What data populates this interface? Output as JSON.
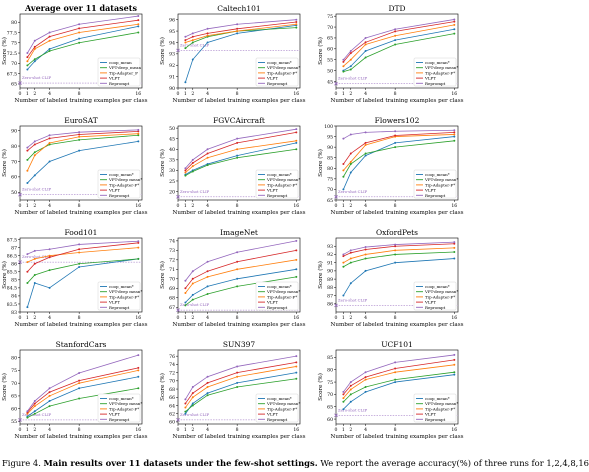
{
  "series_meta": [
    {
      "name": "coop_mean",
      "color": "#1f77b4"
    },
    {
      "name": "VPT-deep_mean",
      "color": "#2ca02c"
    },
    {
      "name": "Tip-Adapter_F",
      "color": "#ff7f0e"
    },
    {
      "name": "VLPT",
      "color": "#d62728"
    },
    {
      "name": "Reprompt",
      "color": "#9467bd"
    }
  ],
  "zeroshot_label": "Zero-shot CLIP",
  "zeroshot_color": "#9467bd",
  "xlabel": "Number of labeled training examples per class",
  "ylabel": "Score (%)",
  "caption": {
    "prefix": "Figure 4.",
    "bold": "Main results over 11 datasets under the few-shot settings.",
    "rest": "We report the average accuracy(%) of three runs for 1,2,4,8,16"
  },
  "chart_data": [
    {
      "type": "line",
      "title": "Average over 11 datasets",
      "x": [
        1,
        2,
        4,
        8,
        16
      ],
      "xticks": [
        0,
        1,
        2,
        4,
        8,
        16
      ],
      "ylim": [
        64,
        82
      ],
      "yticks": [
        65.0,
        67.5,
        70.0,
        72.5,
        75.0,
        77.5,
        80.0
      ],
      "zeroshot": 65.2,
      "legend_names": [
        "coop_mean",
        "VPT-deep_mean",
        "Tip-Adapter_F",
        "VLPT",
        "Reprompt"
      ],
      "series": [
        {
          "name": "coop_mean",
          "values": [
            68.5,
            70.5,
            73.5,
            76.0,
            79.0
          ]
        },
        {
          "name": "VPT-deep_mean",
          "values": [
            69.5,
            71.0,
            73.0,
            75.0,
            77.5
          ]
        },
        {
          "name": "Tip-Adapter_F",
          "values": [
            70.5,
            73.5,
            75.5,
            77.5,
            79.5
          ]
        },
        {
          "name": "VLPT",
          "values": [
            71.5,
            74.0,
            76.5,
            78.5,
            80.5
          ]
        },
        {
          "name": "Reprompt",
          "values": [
            72.5,
            75.5,
            77.5,
            79.5,
            81.5
          ]
        }
      ]
    },
    {
      "type": "line",
      "title": "Caltech101",
      "x": [
        1,
        2,
        4,
        8,
        16
      ],
      "xticks": [
        0,
        1,
        2,
        4,
        8,
        16
      ],
      "ylim": [
        90,
        96.5
      ],
      "yticks": [
        90,
        91,
        92,
        93,
        94,
        95,
        96
      ],
      "zeroshot": 93.3,
      "legend_names": [
        "coop_mean*",
        "VPT-deep mean*",
        "Tip-Adapter-F*",
        "VLPT",
        "Reprompt"
      ],
      "series": [
        {
          "name": "coop_mean*",
          "values": [
            90.5,
            92.5,
            94.0,
            94.8,
            95.5
          ]
        },
        {
          "name": "VPT-deep mean*",
          "values": [
            93.5,
            94.0,
            94.5,
            95.0,
            95.3
          ]
        },
        {
          "name": "Tip-Adapter-F*",
          "values": [
            94.0,
            94.2,
            94.6,
            95.0,
            95.6
          ]
        },
        {
          "name": "VLPT",
          "values": [
            94.2,
            94.5,
            94.8,
            95.2,
            95.8
          ]
        },
        {
          "name": "Reprompt",
          "values": [
            94.5,
            94.8,
            95.2,
            95.6,
            96.0
          ]
        }
      ]
    },
    {
      "type": "line",
      "title": "DTD",
      "x": [
        1,
        2,
        4,
        8,
        16
      ],
      "xticks": [
        0,
        1,
        2,
        4,
        8,
        16
      ],
      "ylim": [
        42,
        76
      ],
      "yticks": [
        45,
        50,
        55,
        60,
        65,
        70,
        75
      ],
      "zeroshot": 44.0,
      "legend_names": [
        "coop_mean*",
        "VPT-deep mean*",
        "Tip-Adapter-F*",
        "VLPT",
        "Reprompt"
      ],
      "series": [
        {
          "name": "coop_mean*",
          "values": [
            50.0,
            52.0,
            59.0,
            64.0,
            69.0
          ]
        },
        {
          "name": "VPT-deep mean*",
          "values": [
            49.5,
            50.5,
            56.0,
            62.0,
            67.0
          ]
        },
        {
          "name": "Tip-Adapter-F*",
          "values": [
            52.0,
            55.0,
            62.0,
            66.0,
            71.0
          ]
        },
        {
          "name": "VLPT",
          "values": [
            54.0,
            58.0,
            63.0,
            68.0,
            72.5
          ]
        },
        {
          "name": "Reprompt",
          "values": [
            55.0,
            59.0,
            65.0,
            69.0,
            73.5
          ]
        }
      ]
    },
    {
      "type": "line",
      "title": "EuroSAT",
      "x": [
        1,
        2,
        4,
        8,
        16
      ],
      "xticks": [
        0,
        1,
        2,
        4,
        8,
        16
      ],
      "ylim": [
        45,
        93
      ],
      "yticks": [
        50,
        60,
        70,
        80,
        90
      ],
      "zeroshot": 48.5,
      "legend_names": [
        "coop_mean*",
        "VPT-deep mean*",
        "Tip-Adapter-F*",
        "VLPT",
        "Reprompt"
      ],
      "series": [
        {
          "name": "coop_mean*",
          "values": [
            56.0,
            61.0,
            70.0,
            77.0,
            83.0
          ]
        },
        {
          "name": "VPT-deep mean*",
          "values": [
            71.0,
            76.0,
            81.0,
            84.0,
            87.0
          ]
        },
        {
          "name": "Tip-Adapter-F*",
          "values": [
            64.0,
            74.0,
            82.0,
            86.0,
            88.0
          ]
        },
        {
          "name": "VLPT",
          "values": [
            77.0,
            81.0,
            85.0,
            87.5,
            89.5
          ]
        },
        {
          "name": "Reprompt",
          "values": [
            79.0,
            83.0,
            87.0,
            89.0,
            90.5
          ]
        }
      ]
    },
    {
      "type": "line",
      "title": "FGVCAircraft",
      "x": [
        1,
        2,
        4,
        8,
        16
      ],
      "xticks": [
        0,
        1,
        2,
        4,
        8,
        16
      ],
      "ylim": [
        16,
        51
      ],
      "yticks": [
        20,
        25,
        30,
        35,
        40,
        45,
        50
      ],
      "zeroshot": 17.5,
      "legend_names": [
        "coop_mean*",
        "VPT-deep mean*",
        "Tip-Adapter-F*",
        "VLPT",
        "Reprompt"
      ],
      "series": [
        {
          "name": "coop_mean*",
          "values": [
            28.0,
            30.0,
            33.0,
            37.0,
            43.0
          ]
        },
        {
          "name": "VPT-deep mean*",
          "values": [
            27.5,
            29.5,
            32.5,
            36.0,
            40.0
          ]
        },
        {
          "name": "Tip-Adapter-F*",
          "values": [
            29.0,
            32.0,
            36.0,
            40.0,
            44.0
          ]
        },
        {
          "name": "VLPT",
          "values": [
            30.0,
            33.5,
            38.0,
            43.0,
            48.0
          ]
        },
        {
          "name": "Reprompt",
          "values": [
            31.0,
            35.0,
            40.0,
            45.0,
            49.5
          ]
        }
      ]
    },
    {
      "type": "line",
      "title": "Flowers102",
      "x": [
        1,
        2,
        4,
        8,
        16
      ],
      "xticks": [
        0,
        1,
        2,
        4,
        8,
        16
      ],
      "ylim": [
        65,
        100
      ],
      "yticks": [
        65,
        70,
        75,
        80,
        85,
        90,
        95,
        100
      ],
      "zeroshot": 66.5,
      "legend_names": [
        "coop_mean*",
        "VPT-deep mean*",
        "Tip-Adapter-F*",
        "VLPT",
        "Reprompt"
      ],
      "series": [
        {
          "name": "coop_mean*",
          "values": [
            70.0,
            78.0,
            86.0,
            92.0,
            95.0
          ]
        },
        {
          "name": "VPT-deep mean*",
          "values": [
            76.0,
            82.0,
            87.0,
            90.0,
            93.0
          ]
        },
        {
          "name": "Tip-Adapter-F*",
          "values": [
            79.0,
            83.0,
            91.0,
            95.0,
            96.0
          ]
        },
        {
          "name": "VLPT",
          "values": [
            82.0,
            87.0,
            92.0,
            95.5,
            97.0
          ]
        },
        {
          "name": "Reprompt",
          "values": [
            94.0,
            96.0,
            97.0,
            97.5,
            98.0
          ]
        }
      ]
    },
    {
      "type": "line",
      "title": "Food101",
      "x": [
        1,
        2,
        4,
        8,
        16
      ],
      "xticks": [
        0,
        1,
        2,
        4,
        8,
        16
      ],
      "ylim": [
        83,
        87.6
      ],
      "yticks": [
        83.0,
        83.5,
        84.0,
        84.5,
        85.0,
        85.5,
        86.0,
        86.5,
        87.0,
        87.5
      ],
      "zeroshot": 86.1,
      "legend_names": [
        "coop_mean*",
        "VPT-deep mean*",
        "Tip-Adapter-F*",
        "VLPT",
        "Reprompt"
      ],
      "series": [
        {
          "name": "coop_mean*",
          "values": [
            83.3,
            84.8,
            84.5,
            85.8,
            86.3
          ]
        },
        {
          "name": "VPT-deep mean*",
          "values": [
            84.8,
            85.3,
            85.6,
            86.0,
            86.3
          ]
        },
        {
          "name": "Tip-Adapter-F*",
          "values": [
            86.1,
            86.3,
            86.5,
            86.7,
            87.0
          ]
        },
        {
          "name": "VLPT",
          "values": [
            85.5,
            86.0,
            86.4,
            86.9,
            87.3
          ]
        },
        {
          "name": "Reprompt",
          "values": [
            86.6,
            86.8,
            86.9,
            87.2,
            87.4
          ]
        }
      ]
    },
    {
      "type": "line",
      "title": "ImageNet",
      "x": [
        1,
        2,
        4,
        8,
        16
      ],
      "xticks": [
        0,
        1,
        2,
        4,
        8,
        16
      ],
      "ylim": [
        66.5,
        74.3
      ],
      "yticks": [
        67,
        68,
        69,
        70,
        71,
        72,
        73,
        74
      ],
      "zeroshot": 66.7,
      "legend_names": [
        "coop_mean*",
        "VPT-deep mean*",
        "Tip-Adapter-F*",
        "VLPT",
        "Reprompt"
      ],
      "series": [
        {
          "name": "coop_mean*",
          "values": [
            67.5,
            68.3,
            69.2,
            70.0,
            71.0
          ]
        },
        {
          "name": "VPT-deep mean*",
          "values": [
            67.2,
            67.8,
            68.4,
            69.2,
            70.2
          ]
        },
        {
          "name": "Tip-Adapter-F*",
          "values": [
            68.5,
            69.5,
            70.2,
            71.0,
            72.0
          ]
        },
        {
          "name": "VLPT",
          "values": [
            69.0,
            70.0,
            70.8,
            71.8,
            73.0
          ]
        },
        {
          "name": "Reprompt",
          "values": [
            69.8,
            70.8,
            71.8,
            72.8,
            74.0
          ]
        }
      ]
    },
    {
      "type": "line",
      "title": "OxfordPets",
      "x": [
        1,
        2,
        4,
        8,
        16
      ],
      "xticks": [
        0,
        1,
        2,
        4,
        8,
        16
      ],
      "ylim": [
        85,
        94
      ],
      "yticks": [
        86,
        87,
        88,
        89,
        90,
        91,
        92,
        93
      ],
      "zeroshot": 85.8,
      "legend_names": [
        "coop_mean*",
        "VPT-deep mean*",
        "Tip-Adapter-F*",
        "VLPT",
        "Reprompt"
      ],
      "series": [
        {
          "name": "coop_mean*",
          "values": [
            87.0,
            88.5,
            90.0,
            91.0,
            91.5
          ]
        },
        {
          "name": "VPT-deep mean*",
          "values": [
            90.5,
            91.0,
            91.5,
            92.0,
            92.3
          ]
        },
        {
          "name": "Tip-Adapter-F*",
          "values": [
            91.0,
            91.5,
            92.0,
            92.5,
            92.8
          ]
        },
        {
          "name": "VLPT",
          "values": [
            91.8,
            92.2,
            92.6,
            93.0,
            93.3
          ]
        },
        {
          "name": "Reprompt",
          "values": [
            92.0,
            92.5,
            92.9,
            93.2,
            93.5
          ]
        }
      ]
    },
    {
      "type": "line",
      "title": "StanfordCars",
      "x": [
        1,
        2,
        4,
        8,
        16
      ],
      "xticks": [
        0,
        1,
        2,
        4,
        8,
        16
      ],
      "ylim": [
        54,
        83
      ],
      "yticks": [
        55,
        60,
        65,
        70,
        75,
        80
      ],
      "zeroshot": 55.6,
      "legend_names": [
        "coop_mean*",
        "VPT-deep mean*",
        "Tip-Adapter-F*",
        "VLPT",
        "Reprompt"
      ],
      "series": [
        {
          "name": "coop_mean*",
          "values": [
            57.0,
            59.0,
            63.0,
            68.0,
            72.5
          ]
        },
        {
          "name": "VPT-deep mean*",
          "values": [
            56.5,
            58.0,
            61.0,
            64.0,
            68.0
          ]
        },
        {
          "name": "Tip-Adapter-F*",
          "values": [
            58.0,
            61.0,
            65.0,
            70.0,
            75.0
          ]
        },
        {
          "name": "VLPT",
          "values": [
            58.5,
            62.0,
            66.5,
            71.0,
            76.0
          ]
        },
        {
          "name": "Reprompt",
          "values": [
            59.0,
            63.0,
            68.0,
            74.0,
            81.0
          ]
        }
      ]
    },
    {
      "type": "line",
      "title": "SUN397",
      "x": [
        1,
        2,
        4,
        8,
        16
      ],
      "xticks": [
        0,
        1,
        2,
        4,
        8,
        16
      ],
      "ylim": [
        59.5,
        77.5
      ],
      "yticks": [
        60,
        62,
        64,
        66,
        68,
        70,
        72,
        74,
        76
      ],
      "zeroshot": 60.5,
      "legend_names": [
        "coop_mean*",
        "VPT-deep mean*",
        "Tip-Adapter-F*",
        "VLPT",
        "Reprompt"
      ],
      "series": [
        {
          "name": "coop_mean*",
          "values": [
            62.0,
            64.5,
            67.0,
            69.5,
            72.0
          ]
        },
        {
          "name": "VPT-deep mean*",
          "values": [
            62.5,
            64.0,
            66.5,
            68.5,
            70.5
          ]
        },
        {
          "name": "Tip-Adapter-F*",
          "values": [
            63.5,
            66.0,
            68.5,
            71.0,
            73.5
          ]
        },
        {
          "name": "VLPT",
          "values": [
            64.5,
            67.0,
            69.5,
            72.0,
            74.5
          ]
        },
        {
          "name": "Reprompt",
          "values": [
            65.5,
            68.5,
            71.0,
            73.5,
            76.0
          ]
        }
      ]
    },
    {
      "type": "line",
      "title": "UCF101",
      "x": [
        1,
        2,
        4,
        8,
        16
      ],
      "xticks": [
        0,
        1,
        2,
        4,
        8,
        16
      ],
      "ylim": [
        58,
        88
      ],
      "yticks": [
        60,
        65,
        70,
        75,
        80,
        85
      ],
      "zeroshot": 61.5,
      "legend_names": [
        "coop_mean*",
        "VPT-deep mean*",
        "Tip-Adapter-F*",
        "VLPT",
        "Reprompt"
      ],
      "series": [
        {
          "name": "coop_mean*",
          "values": [
            64.0,
            67.0,
            71.0,
            75.0,
            78.0
          ]
        },
        {
          "name": "VPT-deep mean*",
          "values": [
            67.0,
            70.0,
            73.0,
            76.0,
            79.0
          ]
        },
        {
          "name": "Tip-Adapter-F*",
          "values": [
            68.5,
            72.0,
            76.0,
            79.0,
            82.0
          ]
        },
        {
          "name": "VLPT",
          "values": [
            70.0,
            73.5,
            77.0,
            80.5,
            84.0
          ]
        },
        {
          "name": "Reprompt",
          "values": [
            71.0,
            75.0,
            79.0,
            83.0,
            86.0
          ]
        }
      ]
    }
  ]
}
